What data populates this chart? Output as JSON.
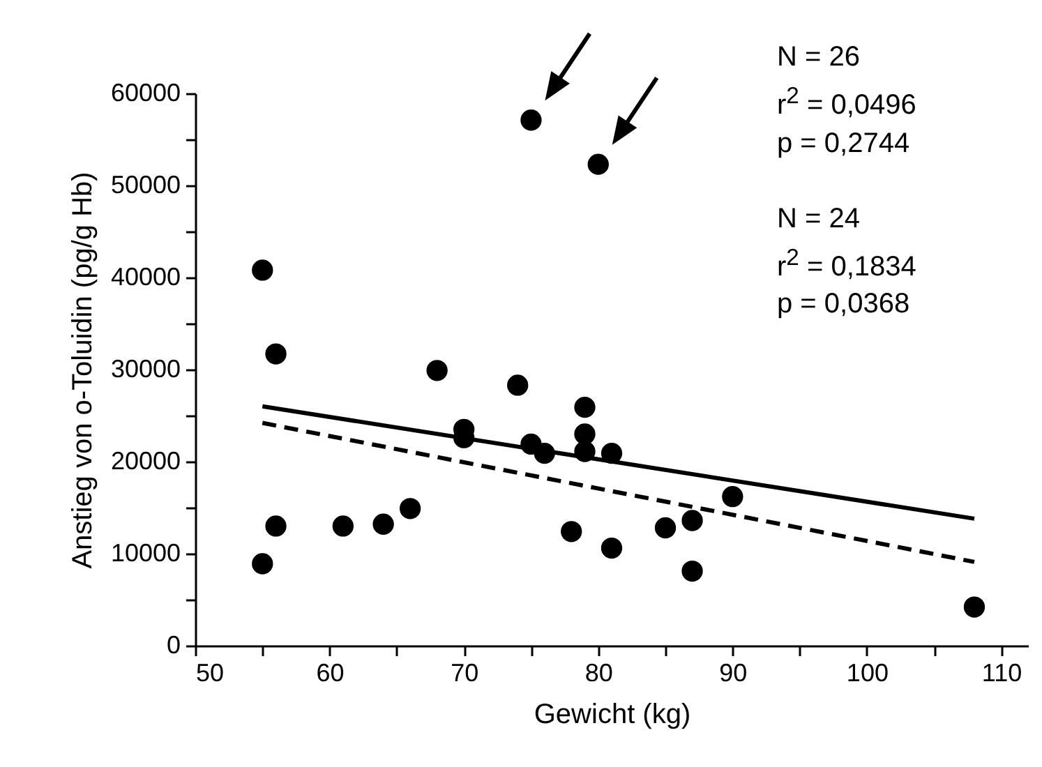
{
  "chart_data": {
    "type": "scatter",
    "xlabel": "Gewicht (kg)",
    "ylabel": "Anstieg von o-Toluidin (pg/g Hb)",
    "xlim": [
      50,
      112
    ],
    "xticks": [
      50,
      {
        "value": 55,
        "label": null
      },
      60,
      {
        "value": 65,
        "label": null
      },
      70,
      {
        "value": 75,
        "label": null
      },
      80,
      {
        "value": 85,
        "label": null
      },
      90,
      {
        "value": 95,
        "label": null
      },
      100,
      {
        "value": 105,
        "label": null
      },
      110
    ],
    "ylim": [
      0,
      60000
    ],
    "yticks": [
      0,
      {
        "value": 5000,
        "label": null
      },
      10000,
      {
        "value": 15000,
        "label": null
      },
      20000,
      {
        "value": 25000,
        "label": null
      },
      30000,
      {
        "value": 35000,
        "label": null
      },
      40000,
      {
        "value": 45000,
        "label": null
      },
      50000,
      {
        "value": 55000,
        "label": null
      },
      60000
    ],
    "grid": false,
    "series": [
      {
        "color": "#000000",
        "marker": "circle",
        "x": [
          55,
          56,
          56,
          55,
          61,
          64,
          66,
          68,
          70,
          70,
          74,
          75,
          75,
          76,
          78,
          79,
          79,
          79,
          80,
          81,
          81,
          85,
          87,
          87,
          90,
          108
        ],
        "values": [
          40800,
          31700,
          13000,
          8900,
          13000,
          13200,
          14900,
          29900,
          23500,
          22600,
          28300,
          57100,
          21900,
          20900,
          12400,
          25900,
          23000,
          21100,
          52300,
          20900,
          10600,
          12800,
          13600,
          8100,
          16200,
          4200
        ]
      },
      {
        "type": "line",
        "color": "#000000",
        "line_style": "solid",
        "x": [
          55,
          108
        ],
        "values": [
          26000,
          13800
        ]
      },
      {
        "type": "line",
        "color": "#000000",
        "line_style": "dashed",
        "x": [
          55,
          108
        ],
        "values": [
          24200,
          9100
        ]
      }
    ],
    "annotations": [
      "N  = 26",
      "r$^{2}$  = 0,0496",
      "p   = 0,2744",
      "N  = 24",
      "r$^{2}$  = 0,1834",
      "p   = 0,0368"
    ]
  }
}
